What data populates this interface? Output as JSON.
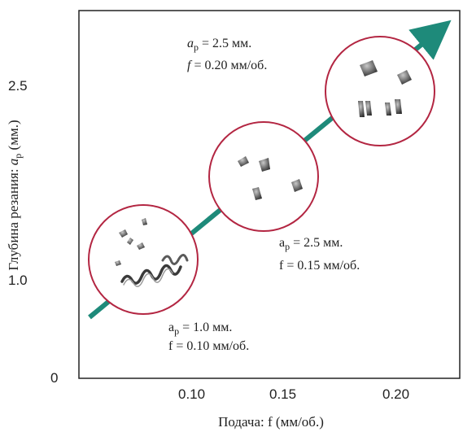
{
  "chart_data": {
    "type": "scatter",
    "xlabel": "Подача: f (мм/об.)",
    "ylabel_main": "Глубина резания: ",
    "ylabel_symbol": "a",
    "ylabel_sub": "p",
    "ylabel_unit": " (мм.)",
    "x_ticks": [
      "0.10",
      "0.15",
      "0.20"
    ],
    "y_ticks": [
      "0",
      "1.0",
      "2.5"
    ],
    "arrow_color": "#1e8a7a",
    "circle_color": "#b32642",
    "points": [
      {
        "x": 0.1,
        "y": 1.0,
        "line1_sym": "a",
        "line1_sub": "p",
        "line1_rest": " = 1.0 мм.",
        "line2_sym": "f",
        "line2_rest": " = 0.10 мм/об."
      },
      {
        "x": 0.15,
        "y": 2.5,
        "line1_sym": "a",
        "line1_sub": "p",
        "line1_rest": " = 2.5 мм.",
        "line2_sym": "f",
        "line2_rest": " = 0.15 мм/об."
      },
      {
        "x": 0.2,
        "y": 2.5,
        "line1_sym": "a",
        "line1_sub": "p",
        "line1_rest": " = 2.5 мм.",
        "line2_sym": "f",
        "line2_rest": " = 0.20 мм/об."
      }
    ]
  }
}
